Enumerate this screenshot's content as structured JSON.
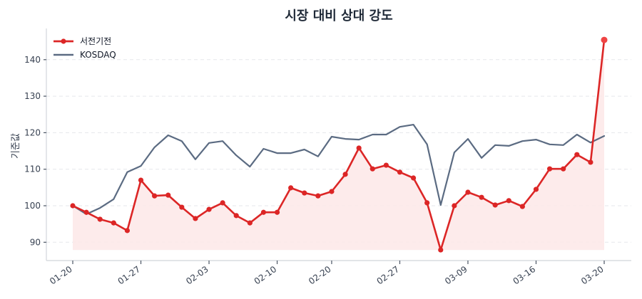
{
  "chart_data": {
    "type": "line",
    "title": "시장 대비 상대 강도",
    "xlabel": "",
    "ylabel": "기준값",
    "ylim": [
      85.5,
      148
    ],
    "yticks": [
      90,
      100,
      110,
      120,
      130,
      140
    ],
    "grid": true,
    "grid_axis": "y",
    "legend_position": "upper left",
    "x_count": 40,
    "xticks": [
      {
        "index": 0,
        "label": "01-20"
      },
      {
        "index": 5,
        "label": "01-27"
      },
      {
        "index": 10,
        "label": "02-03"
      },
      {
        "index": 15,
        "label": "02-10"
      },
      {
        "index": 19,
        "label": "02-20"
      },
      {
        "index": 24,
        "label": "02-27"
      },
      {
        "index": 29,
        "label": "03-09"
      },
      {
        "index": 34,
        "label": "03-16"
      },
      {
        "index": 39,
        "label": "03-20"
      }
    ],
    "series": [
      {
        "name": "서전기전",
        "color": "#dc2626",
        "marker": "circle",
        "fill_below": true,
        "fill_color": "#fde8e8",
        "values": [
          100.0,
          98.2,
          96.3,
          95.3,
          93.2,
          107.0,
          102.7,
          102.9,
          99.6,
          96.5,
          99.0,
          100.8,
          97.3,
          95.3,
          98.2,
          98.2,
          104.9,
          103.5,
          102.7,
          103.9,
          108.6,
          115.8,
          110.1,
          111.1,
          109.2,
          107.6,
          100.8,
          87.9,
          100.0,
          103.7,
          102.3,
          100.2,
          101.4,
          99.8,
          104.5,
          110.1,
          110.1,
          114.0,
          111.9,
          145.4
        ]
      },
      {
        "name": "KOSDAQ",
        "color": "#5b6b82",
        "marker": "none",
        "fill_below": false,
        "values": [
          100.0,
          97.7,
          99.4,
          101.8,
          109.2,
          110.9,
          116.0,
          119.3,
          117.7,
          112.7,
          117.2,
          117.7,
          113.8,
          110.7,
          115.6,
          114.4,
          114.4,
          115.4,
          113.5,
          118.9,
          118.3,
          118.1,
          119.5,
          119.5,
          121.6,
          122.2,
          116.8,
          100.2,
          114.6,
          118.3,
          113.1,
          116.6,
          116.4,
          117.7,
          118.1,
          116.8,
          116.6,
          119.5,
          117.3,
          119.1
        ]
      }
    ]
  }
}
